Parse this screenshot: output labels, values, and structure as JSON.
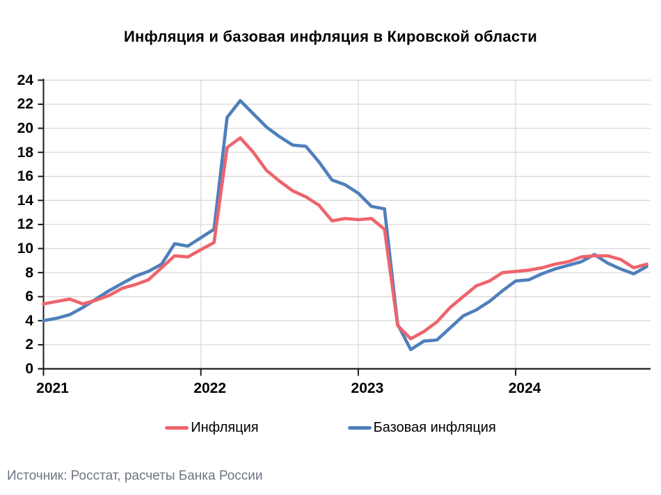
{
  "title": "Инфляция и базовая инфляция в Кировской области",
  "source": "Источник: Росстат, расчеты Банка России",
  "legend": [
    {
      "label": "Инфляция",
      "color": "#ee646c"
    },
    {
      "label": "Базовая инфляция",
      "color": "#4e7fbc"
    }
  ],
  "colors": {
    "inflation": "#ee646c",
    "core_inflation": "#4e7fbc",
    "gridline": "#d9d9d9",
    "axis": "#1a1a1a",
    "source_text": "#6e7681"
  },
  "chart_data": {
    "type": "line",
    "title": "Инфляция и базовая инфляция в Кировской области",
    "xlabel": "",
    "ylabel": "",
    "ylim": [
      0,
      24
    ],
    "ytick_step": 2,
    "grid": true,
    "legend_position": "bottom",
    "x_tick_labels": [
      "2021",
      "2022",
      "2023",
      "2024"
    ],
    "categories": [
      "2021-01",
      "2021-02",
      "2021-03",
      "2021-04",
      "2021-05",
      "2021-06",
      "2021-07",
      "2021-08",
      "2021-09",
      "2021-10",
      "2021-11",
      "2021-12",
      "2022-01",
      "2022-02",
      "2022-03",
      "2022-04",
      "2022-05",
      "2022-06",
      "2022-07",
      "2022-08",
      "2022-09",
      "2022-10",
      "2022-11",
      "2022-12",
      "2023-01",
      "2023-02",
      "2023-03",
      "2023-04",
      "2023-05",
      "2023-06",
      "2023-07",
      "2023-08",
      "2023-09",
      "2023-10",
      "2023-11",
      "2023-12",
      "2024-01",
      "2024-02",
      "2024-03",
      "2024-04",
      "2024-05",
      "2024-06",
      "2024-07",
      "2024-08",
      "2024-09",
      "2024-10",
      "2024-11"
    ],
    "series": [
      {
        "name": "Инфляция",
        "color": "#ee646c",
        "values": [
          5.4,
          5.6,
          5.8,
          5.4,
          5.7,
          6.1,
          6.7,
          7.0,
          7.4,
          8.4,
          9.4,
          9.3,
          9.9,
          10.5,
          18.4,
          19.2,
          18.0,
          16.5,
          15.6,
          14.8,
          14.3,
          13.6,
          12.3,
          12.5,
          12.4,
          12.5,
          11.6,
          3.6,
          2.5,
          3.1,
          3.9,
          5.1,
          6.0,
          6.9,
          7.3,
          8.0,
          8.1,
          8.2,
          8.4,
          8.7,
          8.9,
          9.3,
          9.4,
          9.4,
          9.1,
          8.4,
          8.7
        ]
      },
      {
        "name": "Базовая инфляция",
        "color": "#4e7fbc",
        "values": [
          4.0,
          4.2,
          4.5,
          5.1,
          5.8,
          6.5,
          7.1,
          7.7,
          8.1,
          8.7,
          10.4,
          10.2,
          10.9,
          11.6,
          20.9,
          22.3,
          21.2,
          20.1,
          19.3,
          18.6,
          18.5,
          17.2,
          15.7,
          15.3,
          14.6,
          13.5,
          13.3,
          3.7,
          1.6,
          2.3,
          2.4,
          3.4,
          4.4,
          4.9,
          5.6,
          6.5,
          7.3,
          7.4,
          7.9,
          8.3,
          8.6,
          8.9,
          9.5,
          8.8,
          8.3,
          7.9,
          8.5
        ]
      }
    ]
  }
}
